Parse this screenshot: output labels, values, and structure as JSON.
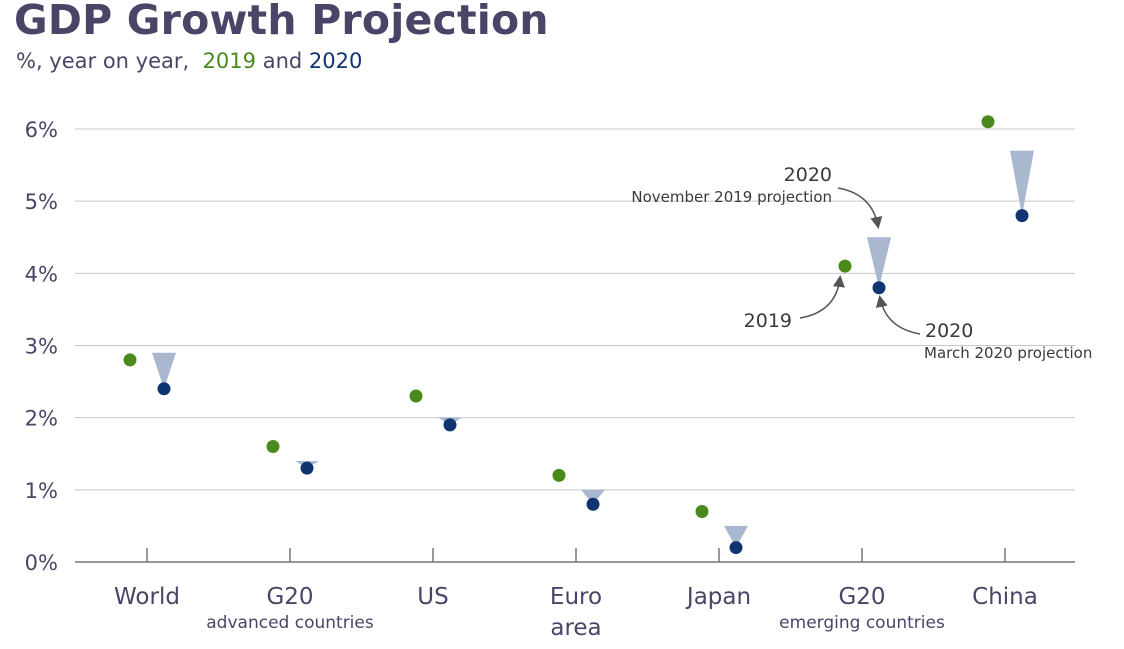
{
  "header": {
    "title": "GDP Growth Projection",
    "subtitle_prefix": "%, year on year,",
    "subtitle_year1": "2019",
    "subtitle_and": "and",
    "subtitle_year2": "2020"
  },
  "colors": {
    "y2019": "#4a8a1c",
    "y2020": "#0f3570",
    "change_marker": "#a9b8cf",
    "grid": "#c8c8c8",
    "text": "#4a4566"
  },
  "chart_data": {
    "type": "scatter",
    "title": "GDP Growth Projection",
    "subtitle": "%, year on year, 2019 and 2020",
    "ylim": [
      0,
      6
    ],
    "yticks": [
      0,
      1,
      2,
      3,
      4,
      5,
      6
    ],
    "ytick_labels": [
      "0%",
      "1%",
      "2%",
      "3%",
      "4%",
      "5%",
      "6%"
    ],
    "grid": true,
    "categories": [
      {
        "name": "World",
        "sub": ""
      },
      {
        "name": "G20",
        "sub": "advanced countries"
      },
      {
        "name": "US",
        "sub": ""
      },
      {
        "name": "Euro",
        "sub": "area"
      },
      {
        "name": "Japan",
        "sub": ""
      },
      {
        "name": "G20",
        "sub": "emerging countries"
      },
      {
        "name": "China",
        "sub": ""
      }
    ],
    "series": [
      {
        "name": "2019",
        "values": [
          2.8,
          1.6,
          2.3,
          1.2,
          0.7,
          4.1,
          6.1
        ]
      },
      {
        "name": "2020 (March 2020 projection)",
        "values": [
          2.4,
          1.3,
          1.9,
          0.8,
          0.2,
          3.8,
          4.8
        ]
      },
      {
        "name": "2020 (November 2019 projection)",
        "values": [
          2.9,
          1.4,
          2.0,
          1.0,
          0.5,
          4.5,
          5.7
        ]
      }
    ],
    "annotations": {
      "nov_year": "2020",
      "nov_label": "November 2019 projection",
      "mar_year": "2020",
      "mar_label": "March 2020 projection",
      "y2019": "2019"
    }
  }
}
